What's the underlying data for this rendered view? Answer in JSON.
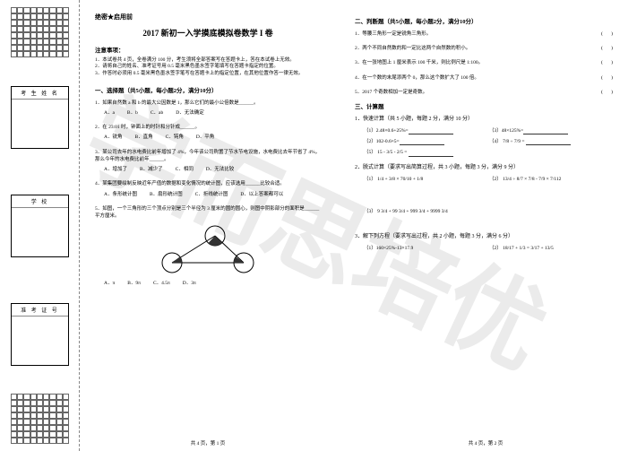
{
  "watermark": "学而思培优",
  "secret": "绝密★启用前",
  "title": "2017 新初一入学摸底模拟卷数学 I 卷",
  "notice_header": "注意事项：",
  "notices": [
    "1．本试卷共 4 页，全卷满分 100 分，考生须将全部答案写在答题卡上，答在本试卷上无效。",
    "2．请将自己的姓名、准考证号用 0.5 毫米黑色墨水签字笔填写在答题卡指定的位置。",
    "3．作答时必须用 0.5 毫米黑色墨水签字笔写在答题卡上的指定位置，在其他位置作答一律无效。"
  ],
  "sections": {
    "s1": "一、选择题（共5小题，每小题2分，满分10分）",
    "s2": "二、判断题（共5小题，每小题2分，满分10分）",
    "s3": "三、计算题",
    "s3_1": "1．快速计算（共 5 小题，每题 2 分，满分 10 分）",
    "s3_2": "2．脱式计算（要求写出简算过程，共 3 小题，每题 3 分，满分 9 分）",
    "s3_3": "3．解下列方程（要求写出过程，共 2 小题，每题 3 分，满分 6 分）"
  },
  "q1": {
    "text": "1．如果自然数 a 和 b 的最大公因数是 1，那么它们的最小公倍数是______。",
    "opts": [
      "A．a",
      "B．b",
      "C．ab",
      "D．无法确定"
    ]
  },
  "q2": {
    "text": "2．在 23:01 时，钟面上的时针和分针成______。",
    "opts": [
      "A．锐角",
      "B．直角",
      "C．钝角",
      "D．平角"
    ]
  },
  "q3": {
    "text": "3．某公司去年的水电费比前年增加了 4%，今年该公司购置了节水节电设施，水电费比去年节省了 4%，那么今年的水电费比前年______。",
    "opts": [
      "A．增加了",
      "B．减少了",
      "C．相同",
      "D．无法比较"
    ]
  },
  "q4": {
    "text": "4．某集团要绘制反映近年产值的数据和变化情况的统计图，应该选用______比较合适。",
    "opts": [
      "A．条形统计图",
      "B．扇形统计图",
      "C．折线统计图",
      "D．以上答案都可以"
    ]
  },
  "q5": {
    "text": "5．如图，一个三角形的三个顶点分别是三个半径为 3 厘米的圆的圆心，则图中阴影部分的面积是______平方厘米。",
    "opts": [
      "A．π",
      "B．9π",
      "C．4.5π",
      "D．3π"
    ]
  },
  "j1": "1．等腰三角形一定是锐角三角形。",
  "j2": "2．两个不同自然数的和一定比这两个自然数的积小。",
  "j3": "3．在一张地图上 1 厘米表示 100 千米，则比例尺是 1:100。",
  "j4": "4．在一个数的末尾添两个 0，那么这个数扩大了 100 倍。",
  "j5": "5．2017 个奇数相加一定是奇数。",
  "calc1": [
    "（1）2.48×0.6+25%=",
    "（2）102-0.6×5=",
    "（3）48×125%=",
    "（4）",
    "（5）"
  ],
  "calc2": [
    "（1）",
    "（2）",
    "（3）"
  ],
  "calc2_expr": [
    "1/4 + 3/8 × 70/10 + 1/8",
    "13/4 ÷ 8/7 × 7/8 - 7/9 × 7/112",
    "9 3/4 + 99 3/4 + 999 3/4 + 9999 3/4"
  ],
  "eq": [
    "（1）160×25%-13×17.9",
    "（2）"
  ],
  "eq_expr": "18/17 + 1/3 = 3/17 + 13/5",
  "footer_left": "共 4 页，第 1 页",
  "footer_right": "共 4 页，第 2 页",
  "info_labels": [
    "考 生 姓 名",
    "学    校",
    "准 考 证 号"
  ]
}
